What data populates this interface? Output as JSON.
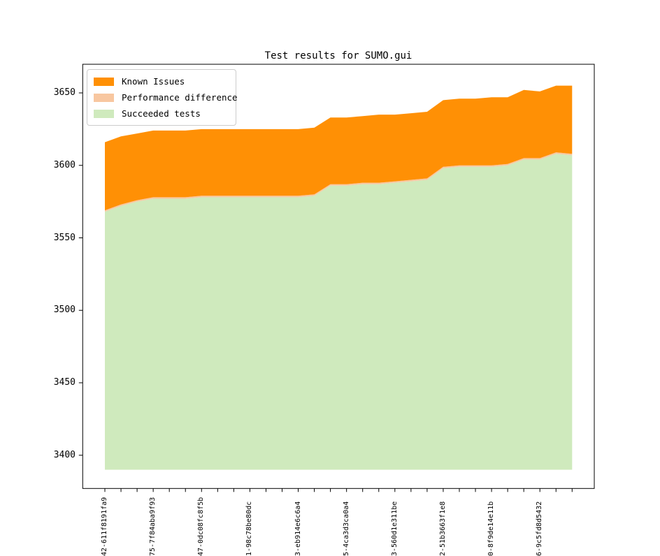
{
  "title": "Test results for SUMO.gui",
  "legend": [
    {
      "label": "Known Issues",
      "color": "#ff9005"
    },
    {
      "label": "Performance difference",
      "color": "#f8c7a0"
    },
    {
      "label": "Succeeded tests",
      "color": "#cfeabd"
    }
  ],
  "axis": {
    "yticks": [
      3400,
      3450,
      3500,
      3550,
      3600,
      3650
    ],
    "ylim": [
      3377,
      3670
    ],
    "n_xticks": 30,
    "x_labeled_every": 3
  },
  "chart_data": {
    "type": "area",
    "stacked": true,
    "title": "Test results for SUMO.gui",
    "xlabel": "",
    "ylabel": "",
    "grid": false,
    "legend_position": "upper left",
    "baseline_value": 3390,
    "ylim": [
      3377,
      3670
    ],
    "yticks": [
      3400,
      3450,
      3500,
      3550,
      3600,
      3650
    ],
    "n_points": 30,
    "x_tick_labels": [
      "42-611f8191fa9",
      "75-7f84aba9f93",
      "47-0dc08fc8f5b",
      "1-98c78be80dc",
      "3-eb914e6c6a4",
      "5-4ca3d3ca0a4",
      "3-560d1e311be",
      "2-51b3663f1e8",
      "0-8f9de14e11b",
      "6-9c5fd8d5432"
    ],
    "series": [
      {
        "name": "Succeeded tests",
        "color": "#cfeabd",
        "values": [
          3568,
          3572,
          3575,
          3577,
          3577,
          3577,
          3578,
          3578,
          3578,
          3578,
          3578,
          3578,
          3578,
          3579,
          3586,
          3586,
          3587,
          3587,
          3588,
          3589,
          3590,
          3598,
          3599,
          3599,
          3599,
          3600,
          3604,
          3604,
          3608,
          3607
        ]
      },
      {
        "name": "Performance difference",
        "color": "#f8c7a0",
        "values": [
          1,
          1,
          1,
          1,
          1,
          1,
          1,
          1,
          1,
          1,
          1,
          1,
          1,
          1,
          1,
          1,
          1,
          1,
          1,
          1,
          1,
          1,
          1,
          1,
          1,
          1,
          1,
          1,
          1,
          1
        ]
      },
      {
        "name": "Known Issues",
        "color": "#ff9005",
        "values": [
          47,
          47,
          46,
          46,
          46,
          46,
          46,
          46,
          46,
          46,
          46,
          46,
          46,
          46,
          46,
          46,
          46,
          47,
          46,
          46,
          46,
          46,
          46,
          46,
          47,
          46,
          47,
          46,
          46,
          47
        ]
      }
    ],
    "totals": [
      3616,
      3620,
      3622,
      3624,
      3624,
      3624,
      3625,
      3625,
      3625,
      3625,
      3625,
      3625,
      3625,
      3626,
      3633,
      3633,
      3634,
      3635,
      3635,
      3636,
      3637,
      3645,
      3646,
      3646,
      3647,
      3647,
      3652,
      3651,
      3655,
      3655
    ]
  }
}
